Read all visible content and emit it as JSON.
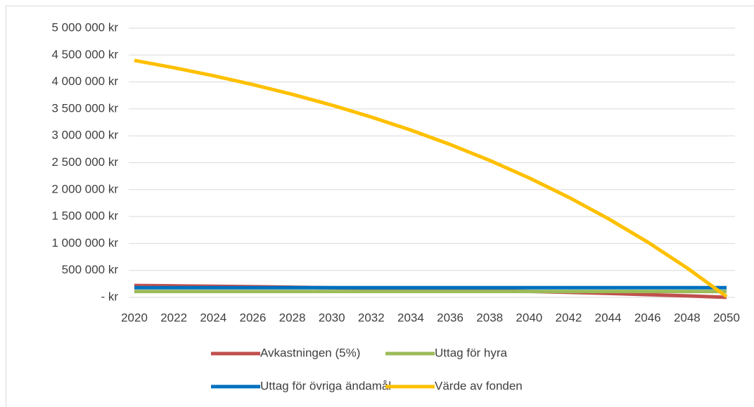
{
  "chart_data": {
    "type": "line",
    "x": [
      2020,
      2022,
      2024,
      2026,
      2028,
      2030,
      2032,
      2034,
      2036,
      2038,
      2040,
      2042,
      2044,
      2046,
      2048,
      2050
    ],
    "series": [
      {
        "name": "Avkastningen (5%)",
        "color": "#c0504d",
        "values": [
          220000,
          213000,
          206000,
          198000,
          188000,
          178000,
          167000,
          155000,
          142000,
          127000,
          111000,
          93000,
          73000,
          51000,
          27000,
          1000
        ]
      },
      {
        "name": "Uttag för hyra",
        "color": "#9bbb59",
        "values": [
          110000,
          110000,
          110000,
          110000,
          110000,
          110000,
          110000,
          110000,
          110000,
          110000,
          110000,
          110000,
          110000,
          110000,
          110000,
          110000
        ]
      },
      {
        "name": "Uttag för övriga ändamål",
        "color": "#0070c0",
        "values": [
          180000,
          180000,
          180000,
          180000,
          180000,
          180000,
          180000,
          180000,
          180000,
          180000,
          180000,
          180000,
          180000,
          180000,
          180000,
          180000
        ]
      },
      {
        "name": "Värde av fonden",
        "color": "#ffc000",
        "values": [
          4400000,
          4265000,
          4116000,
          3951000,
          3770000,
          3570000,
          3349000,
          3107000,
          2839000,
          2543000,
          2218000,
          1859000,
          1463000,
          1027000,
          546000,
          15000
        ]
      }
    ],
    "xlim": [
      2020,
      2050
    ],
    "xticks": [
      2020,
      2022,
      2024,
      2026,
      2028,
      2030,
      2032,
      2034,
      2036,
      2038,
      2040,
      2042,
      2044,
      2046,
      2048,
      2050
    ],
    "ylim": [
      0,
      5000000
    ],
    "yticks": [
      {
        "value": 0,
        "label": "-   kr"
      },
      {
        "value": 500000,
        "label": "500 000 kr"
      },
      {
        "value": 1000000,
        "label": "1 000 000 kr"
      },
      {
        "value": 1500000,
        "label": "1 500 000 kr"
      },
      {
        "value": 2000000,
        "label": "2 000 000 kr"
      },
      {
        "value": 2500000,
        "label": "2 500 000 kr"
      },
      {
        "value": 3000000,
        "label": "3 000 000 kr"
      },
      {
        "value": 3500000,
        "label": "3 500 000 kr"
      },
      {
        "value": 4000000,
        "label": "4 000 000 kr"
      },
      {
        "value": 4500000,
        "label": "4 500 000 kr"
      },
      {
        "value": 5000000,
        "label": "5 000 000 kr"
      }
    ],
    "grid": true,
    "legend": "bottom"
  }
}
